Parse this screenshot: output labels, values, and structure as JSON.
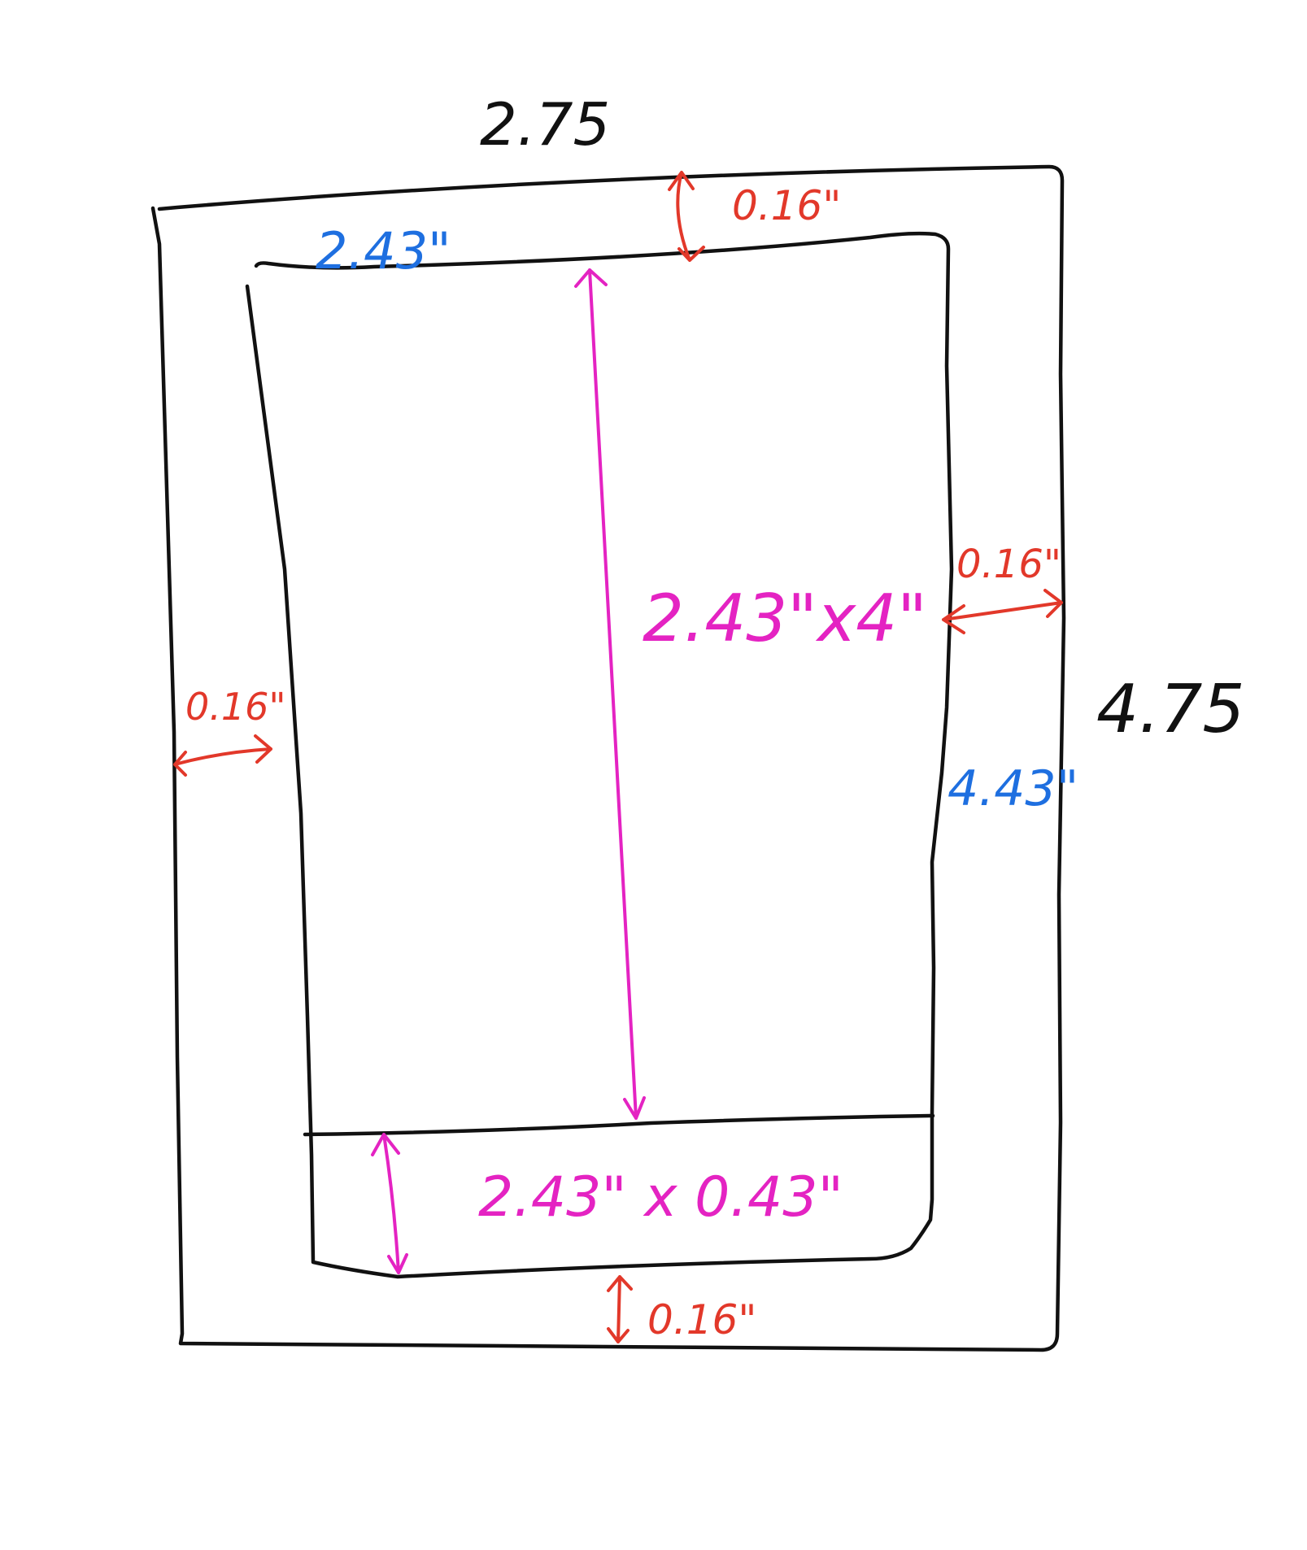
{
  "colors": {
    "outline": "#111111",
    "border_measure": "#e2382a",
    "inner_size": "#1e6fe0",
    "area_measure": "#e423c2"
  },
  "labels": {
    "outer_width": "2.75",
    "outer_height": "4.75",
    "inner_width": "2.43\"",
    "inner_height": "4.43\"",
    "margin_top": "0.16\"",
    "margin_right": "0.16\"",
    "margin_left": "0.16\"",
    "margin_bottom": "0.16\"",
    "main_area": "2.43\"x4\"",
    "bottom_area": "2.43\" x 0.43\""
  }
}
